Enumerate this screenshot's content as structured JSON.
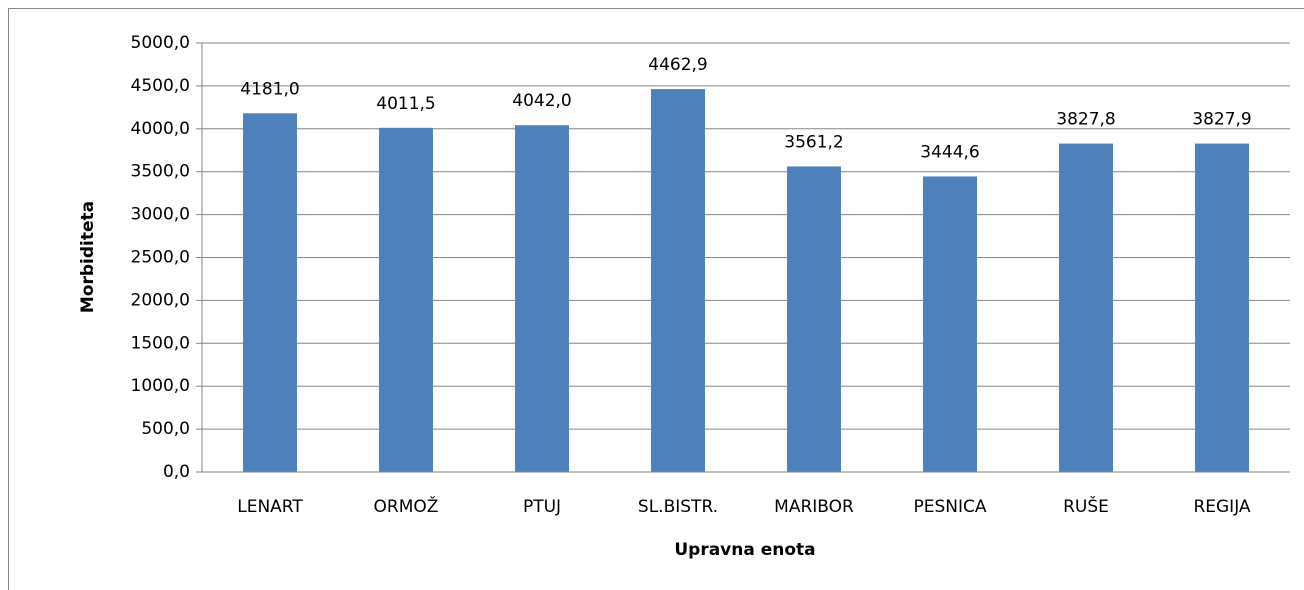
{
  "chart_data": {
    "type": "bar",
    "categories": [
      "LENART",
      "ORMOŽ",
      "PTUJ",
      "SL.BISTR.",
      "MARIBOR",
      "PESNICA",
      "RUŠE",
      "REGIJA"
    ],
    "values": [
      4181.0,
      4011.5,
      4042.0,
      4462.9,
      3561.2,
      3444.6,
      3827.8,
      3827.9
    ],
    "value_labels": [
      "4181,0",
      "4011,5",
      "4042,0",
      "4462,9",
      "3561,2",
      "3444,6",
      "3827,8",
      "3827,9"
    ],
    "color": "#4f81bd",
    "x_label": "Upravna enota",
    "y_label": "Morbiditeta",
    "ylim": [
      0,
      5000
    ],
    "yticks": [
      {
        "value": 0,
        "label": "0,0"
      },
      {
        "value": 500,
        "label": "500,0"
      },
      {
        "value": 1000,
        "label": "1000,0"
      },
      {
        "value": 1500,
        "label": "1500,0"
      },
      {
        "value": 2000,
        "label": "2000,0"
      },
      {
        "value": 2500,
        "label": "2500,0"
      },
      {
        "value": 3000,
        "label": "3000,0"
      },
      {
        "value": 3500,
        "label": "3500,0"
      },
      {
        "value": 4000,
        "label": "4000,0"
      },
      {
        "value": 4500,
        "label": "4500,0"
      },
      {
        "value": 5000,
        "label": "5000,0"
      }
    ],
    "grid": true
  }
}
